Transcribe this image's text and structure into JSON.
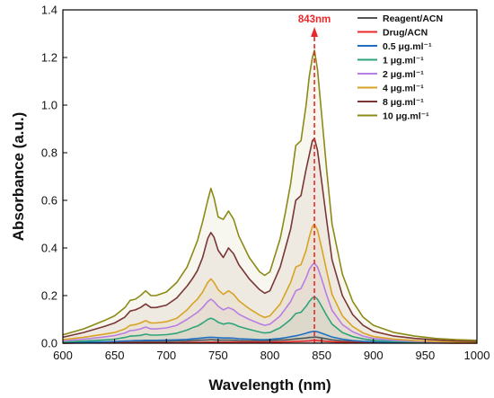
{
  "chart_data": {
    "type": "line",
    "xlabel": "Wavelength (nm)",
    "ylabel": "Absorbance (a.u.)",
    "xlim": [
      600,
      1000
    ],
    "ylim": [
      0,
      1.4
    ],
    "x_ticks": [
      "600",
      "650",
      "700",
      "750",
      "800",
      "850",
      "900",
      "950",
      "1000"
    ],
    "y_ticks": [
      "0.0",
      "0.2",
      "0.4",
      "0.6",
      "0.8",
      "1.0",
      "1.2",
      "1.4"
    ],
    "legend_position": "top-right",
    "annotation": {
      "text": "843nm",
      "x": 843,
      "color": "#e8292a"
    },
    "x": [
      600,
      620,
      640,
      650,
      660,
      665,
      670,
      675,
      680,
      685,
      690,
      700,
      710,
      720,
      725,
      730,
      735,
      740,
      743,
      746,
      750,
      755,
      760,
      765,
      770,
      780,
      790,
      795,
      800,
      805,
      810,
      815,
      820,
      825,
      830,
      835,
      838,
      841,
      843,
      846,
      850,
      855,
      860,
      870,
      880,
      890,
      900,
      920,
      940,
      960,
      980,
      1000
    ],
    "series": [
      {
        "name": "Reagent/ACN",
        "color": "#555555",
        "values": [
          0.0,
          0.002,
          0.003,
          0.004,
          0.006,
          0.007,
          0.007,
          0.007,
          0.008,
          0.007,
          0.007,
          0.008,
          0.009,
          0.01,
          0.011,
          0.012,
          0.013,
          0.014,
          0.015,
          0.014,
          0.013,
          0.013,
          0.013,
          0.012,
          0.011,
          0.01,
          0.01,
          0.01,
          0.011,
          0.012,
          0.013,
          0.014,
          0.016,
          0.018,
          0.02,
          0.022,
          0.024,
          0.025,
          0.026,
          0.025,
          0.022,
          0.018,
          0.014,
          0.01,
          0.007,
          0.005,
          0.004,
          0.003,
          0.002,
          0.002,
          0.001,
          0.001
        ]
      },
      {
        "name": "Drug/ACN",
        "color": "#e8292a",
        "values": [
          0.0,
          0.001,
          0.001,
          0.001,
          0.002,
          0.002,
          0.002,
          0.002,
          0.002,
          0.002,
          0.002,
          0.002,
          0.002,
          0.003,
          0.003,
          0.003,
          0.003,
          0.004,
          0.004,
          0.004,
          0.004,
          0.004,
          0.004,
          0.004,
          0.004,
          0.004,
          0.004,
          0.004,
          0.004,
          0.005,
          0.005,
          0.006,
          0.006,
          0.007,
          0.008,
          0.009,
          0.01,
          0.011,
          0.012,
          0.011,
          0.01,
          0.008,
          0.006,
          0.004,
          0.003,
          0.002,
          0.002,
          0.001,
          0.001,
          0.001,
          0.0,
          0.0
        ]
      },
      {
        "name": "0.5 μg.ml⁻¹",
        "color": "#1f6fc0",
        "values": [
          0.002,
          0.004,
          0.006,
          0.007,
          0.009,
          0.01,
          0.011,
          0.011,
          0.012,
          0.012,
          0.012,
          0.013,
          0.014,
          0.016,
          0.018,
          0.02,
          0.022,
          0.024,
          0.025,
          0.024,
          0.023,
          0.022,
          0.022,
          0.021,
          0.019,
          0.017,
          0.015,
          0.015,
          0.016,
          0.018,
          0.02,
          0.023,
          0.027,
          0.031,
          0.036,
          0.042,
          0.046,
          0.049,
          0.05,
          0.048,
          0.042,
          0.034,
          0.026,
          0.017,
          0.011,
          0.008,
          0.006,
          0.004,
          0.003,
          0.002,
          0.002,
          0.001
        ]
      },
      {
        "name": "1 μg.ml⁻¹",
        "color": "#2ea37a",
        "values": [
          0.005,
          0.009,
          0.014,
          0.017,
          0.024,
          0.03,
          0.031,
          0.033,
          0.038,
          0.034,
          0.034,
          0.036,
          0.042,
          0.055,
          0.065,
          0.072,
          0.085,
          0.1,
          0.105,
          0.1,
          0.088,
          0.08,
          0.085,
          0.08,
          0.07,
          0.058,
          0.047,
          0.043,
          0.045,
          0.055,
          0.065,
          0.082,
          0.1,
          0.125,
          0.13,
          0.155,
          0.175,
          0.19,
          0.195,
          0.185,
          0.155,
          0.115,
          0.08,
          0.045,
          0.028,
          0.018,
          0.012,
          0.007,
          0.005,
          0.003,
          0.002,
          0.002
        ]
      },
      {
        "name": "2 μg.ml⁻¹",
        "color": "#b77ee3",
        "values": [
          0.01,
          0.017,
          0.026,
          0.032,
          0.043,
          0.053,
          0.055,
          0.06,
          0.068,
          0.06,
          0.06,
          0.064,
          0.075,
          0.1,
          0.115,
          0.13,
          0.15,
          0.175,
          0.185,
          0.175,
          0.155,
          0.14,
          0.15,
          0.14,
          0.122,
          0.1,
          0.082,
          0.075,
          0.08,
          0.097,
          0.115,
          0.145,
          0.175,
          0.22,
          0.23,
          0.275,
          0.31,
          0.33,
          0.335,
          0.32,
          0.27,
          0.2,
          0.138,
          0.078,
          0.048,
          0.03,
          0.02,
          0.012,
          0.008,
          0.005,
          0.004,
          0.003
        ]
      },
      {
        "name": "4 μg.ml⁻¹",
        "color": "#d8a325",
        "values": [
          0.015,
          0.025,
          0.038,
          0.045,
          0.06,
          0.075,
          0.078,
          0.085,
          0.095,
          0.085,
          0.085,
          0.09,
          0.105,
          0.14,
          0.165,
          0.185,
          0.215,
          0.255,
          0.27,
          0.255,
          0.225,
          0.205,
          0.22,
          0.205,
          0.178,
          0.145,
          0.118,
          0.108,
          0.115,
          0.14,
          0.165,
          0.21,
          0.255,
          0.32,
          0.33,
          0.39,
          0.445,
          0.49,
          0.5,
          0.475,
          0.4,
          0.3,
          0.205,
          0.115,
          0.07,
          0.043,
          0.028,
          0.017,
          0.011,
          0.007,
          0.005,
          0.004
        ]
      },
      {
        "name": "8 μg.ml⁻¹",
        "color": "#7a3636",
        "values": [
          0.025,
          0.045,
          0.07,
          0.085,
          0.11,
          0.135,
          0.14,
          0.15,
          0.165,
          0.15,
          0.15,
          0.16,
          0.19,
          0.24,
          0.27,
          0.305,
          0.36,
          0.44,
          0.465,
          0.445,
          0.39,
          0.36,
          0.4,
          0.375,
          0.33,
          0.27,
          0.225,
          0.21,
          0.22,
          0.27,
          0.32,
          0.4,
          0.48,
          0.6,
          0.62,
          0.73,
          0.79,
          0.85,
          0.86,
          0.81,
          0.68,
          0.51,
          0.35,
          0.2,
          0.12,
          0.075,
          0.05,
          0.03,
          0.02,
          0.014,
          0.01,
          0.008
        ]
      },
      {
        "name": "10 μg.ml⁻¹",
        "color": "#8c8a17",
        "values": [
          0.035,
          0.06,
          0.095,
          0.115,
          0.15,
          0.18,
          0.185,
          0.2,
          0.22,
          0.2,
          0.2,
          0.215,
          0.255,
          0.32,
          0.375,
          0.43,
          0.51,
          0.6,
          0.65,
          0.61,
          0.53,
          0.52,
          0.555,
          0.52,
          0.45,
          0.36,
          0.3,
          0.285,
          0.3,
          0.37,
          0.44,
          0.55,
          0.67,
          0.83,
          0.85,
          1.0,
          1.12,
          1.2,
          1.23,
          1.15,
          0.96,
          0.72,
          0.5,
          0.29,
          0.175,
          0.11,
          0.075,
          0.045,
          0.03,
          0.02,
          0.015,
          0.012
        ]
      }
    ]
  }
}
